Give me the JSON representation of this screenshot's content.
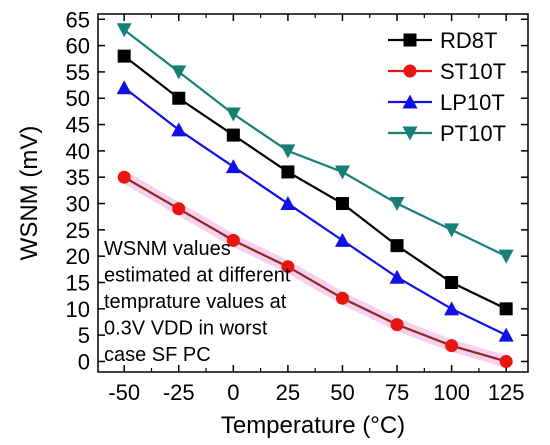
{
  "chart_data": {
    "type": "line",
    "xlabel": "Temperature (°C)",
    "ylabel": "WSNM (mV)",
    "x": [
      -50,
      -25,
      0,
      25,
      50,
      75,
      100,
      125
    ],
    "xlim": [
      -62,
      135
    ],
    "ylim": [
      -2,
      66
    ],
    "x_ticks": [
      "-50",
      "-25",
      "0",
      "25",
      "50",
      "75",
      "100",
      "125"
    ],
    "y_ticks": [
      "0",
      "5",
      "10",
      "15",
      "20",
      "25",
      "30",
      "35",
      "40",
      "45",
      "50",
      "55",
      "60",
      "65"
    ],
    "grid": false,
    "legend_position": "top-right",
    "series": [
      {
        "name": "RD8T",
        "color": "#000000",
        "marker": "square",
        "values": [
          58,
          50,
          43,
          36,
          30,
          22,
          15,
          10
        ]
      },
      {
        "name": "ST10T",
        "color": "#e8160e",
        "marker": "circle",
        "line_color": "#8b2a1e",
        "values": [
          35,
          29,
          23,
          18,
          12,
          7,
          3,
          0
        ]
      },
      {
        "name": "LP10T",
        "color": "#1010e6",
        "marker": "triangle-up",
        "values": [
          52,
          44,
          37,
          30,
          23,
          16,
          10,
          5
        ]
      },
      {
        "name": "PT10T",
        "color": "#168077",
        "marker": "triangle-down",
        "values": [
          63,
          55,
          47,
          40,
          36,
          30,
          25,
          20
        ]
      }
    ],
    "annotation": [
      "WSNM values",
      "estimated at different",
      "temprature values at",
      "0.3V VDD in worst",
      "case SF PC"
    ]
  }
}
